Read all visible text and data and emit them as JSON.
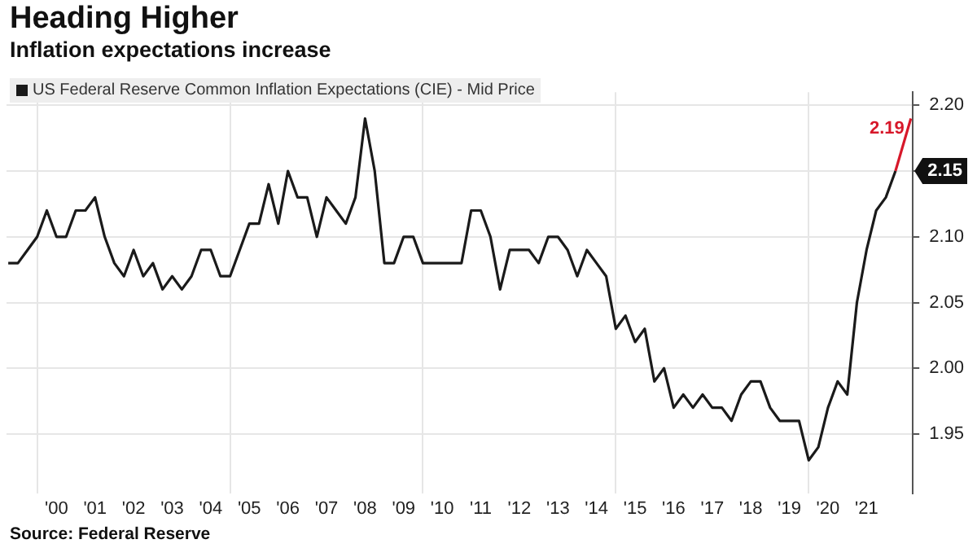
{
  "chart_data": {
    "type": "line",
    "title": "Heading Higher",
    "subtitle": "Inflation expectations increase",
    "series": [
      {
        "name": "US Federal Reserve Common Inflation Expectations (CIE) - Mid Price",
        "color": "#1a1a1a",
        "x": [
          "1999-04",
          "1999-07",
          "1999-10",
          "2000-01",
          "2000-04",
          "2000-07",
          "2000-10",
          "2001-01",
          "2001-04",
          "2001-07",
          "2001-10",
          "2002-01",
          "2002-04",
          "2002-07",
          "2002-10",
          "2003-01",
          "2003-04",
          "2003-07",
          "2003-10",
          "2004-01",
          "2004-04",
          "2004-07",
          "2004-10",
          "2005-01",
          "2005-04",
          "2005-07",
          "2005-10",
          "2006-01",
          "2006-04",
          "2006-07",
          "2006-10",
          "2007-01",
          "2007-04",
          "2007-07",
          "2007-10",
          "2008-01",
          "2008-04",
          "2008-07",
          "2008-10",
          "2009-01",
          "2009-04",
          "2009-07",
          "2009-10",
          "2010-01",
          "2010-04",
          "2010-07",
          "2010-10",
          "2011-01",
          "2011-04",
          "2011-07",
          "2011-10",
          "2012-01",
          "2012-04",
          "2012-07",
          "2012-10",
          "2013-01",
          "2013-04",
          "2013-07",
          "2013-10",
          "2014-01",
          "2014-04",
          "2014-07",
          "2014-10",
          "2015-01",
          "2015-04",
          "2015-07",
          "2015-10",
          "2016-01",
          "2016-04",
          "2016-07",
          "2016-10",
          "2017-01",
          "2017-04",
          "2017-07",
          "2017-10",
          "2018-01",
          "2018-04",
          "2018-07",
          "2018-10",
          "2019-01",
          "2019-04",
          "2019-07",
          "2019-10",
          "2020-01",
          "2020-04",
          "2020-07",
          "2020-10",
          "2021-01",
          "2021-04",
          "2021-07",
          "2021-10",
          "2022-01",
          "2022-04"
        ],
        "values": [
          2.08,
          2.08,
          2.09,
          2.1,
          2.12,
          2.1,
          2.1,
          2.12,
          2.12,
          2.13,
          2.1,
          2.08,
          2.07,
          2.09,
          2.07,
          2.08,
          2.06,
          2.07,
          2.06,
          2.07,
          2.09,
          2.09,
          2.07,
          2.07,
          2.09,
          2.11,
          2.11,
          2.14,
          2.11,
          2.15,
          2.13,
          2.13,
          2.1,
          2.13,
          2.12,
          2.11,
          2.13,
          2.19,
          2.15,
          2.08,
          2.08,
          2.1,
          2.1,
          2.08,
          2.08,
          2.08,
          2.08,
          2.08,
          2.12,
          2.12,
          2.1,
          2.06,
          2.09,
          2.09,
          2.09,
          2.08,
          2.1,
          2.1,
          2.09,
          2.07,
          2.09,
          2.08,
          2.07,
          2.03,
          2.04,
          2.02,
          2.03,
          1.99,
          2.0,
          1.97,
          1.98,
          1.97,
          1.98,
          1.97,
          1.97,
          1.96,
          1.98,
          1.99,
          1.99,
          1.97,
          1.96,
          1.96,
          1.96,
          1.93,
          1.94,
          1.97,
          1.99,
          1.98,
          2.05,
          2.09,
          2.12,
          2.13,
          2.15
        ]
      },
      {
        "color": "#d7182a",
        "x": [
          "2022-04",
          "2022-08-25"
        ],
        "values": [
          2.15,
          2.19
        ]
      }
    ],
    "xlim": [
      "1999-03-15",
      "2022-09-13"
    ],
    "xticks": [
      {
        "value": "2000-01",
        "label": null
      },
      {
        "value": "2000-07",
        "label": "'00"
      },
      {
        "value": "2001-07",
        "label": "'01"
      },
      {
        "value": "2002-07",
        "label": "'02"
      },
      {
        "value": "2003-07",
        "label": "'03"
      },
      {
        "value": "2004-07",
        "label": "'04"
      },
      {
        "value": "2005-01",
        "label": null
      },
      {
        "value": "2005-07",
        "label": "'05"
      },
      {
        "value": "2006-07",
        "label": "'06"
      },
      {
        "value": "2007-07",
        "label": "'07"
      },
      {
        "value": "2008-07",
        "label": "'08"
      },
      {
        "value": "2009-07",
        "label": "'09"
      },
      {
        "value": "2010-01",
        "label": null
      },
      {
        "value": "2010-07",
        "label": "'10"
      },
      {
        "value": "2011-07",
        "label": "'11"
      },
      {
        "value": "2012-07",
        "label": "'12"
      },
      {
        "value": "2013-07",
        "label": "'13"
      },
      {
        "value": "2014-07",
        "label": "'14"
      },
      {
        "value": "2015-01",
        "label": null
      },
      {
        "value": "2015-07",
        "label": "'15"
      },
      {
        "value": "2016-07",
        "label": "'16"
      },
      {
        "value": "2017-07",
        "label": "'17"
      },
      {
        "value": "2018-07",
        "label": "'18"
      },
      {
        "value": "2019-07",
        "label": "'19"
      },
      {
        "value": "2020-01",
        "label": null
      },
      {
        "value": "2020-07",
        "label": "'20"
      },
      {
        "value": "2021-07",
        "label": "'21"
      }
    ],
    "ylim": [
      1.905,
      2.21
    ],
    "yticks": [
      {
        "value": 1.95,
        "label": "1.95"
      },
      {
        "value": 2,
        "label": "2.00"
      },
      {
        "value": 2.05,
        "label": "2.05"
      },
      {
        "value": 2.1,
        "label": "2.10"
      },
      {
        "value": 2.15,
        "label": null
      },
      {
        "value": 2.2,
        "label": "2.20"
      }
    ],
    "grid": true,
    "legend": "top left",
    "marker": "none",
    "line_style": "solid",
    "annotations": [
      {
        "text": "2.19",
        "x": "2022-08-25",
        "y": 2.19
      },
      {
        "text": "2.15",
        "x": "2022-04",
        "y": 2.15
      },
      "Source: Federal Reserve"
    ]
  }
}
